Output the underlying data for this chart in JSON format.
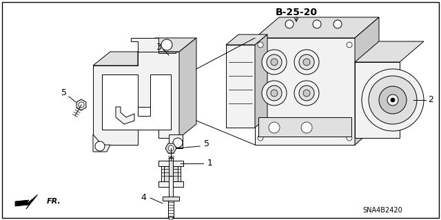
{
  "background_color": "#ffffff",
  "border_color": "#000000",
  "diagram_code": "SNA4B2420",
  "ref_label": "B-25-20",
  "fr_label": "FR.",
  "text_color": "#000000",
  "line_color": "#000000",
  "fill_light": "#f2f2f2",
  "fill_mid": "#e0e0e0",
  "fill_dark": "#c8c8c8",
  "figsize": [
    6.4,
    3.19
  ],
  "dpi": 100,
  "lw": 0.7
}
